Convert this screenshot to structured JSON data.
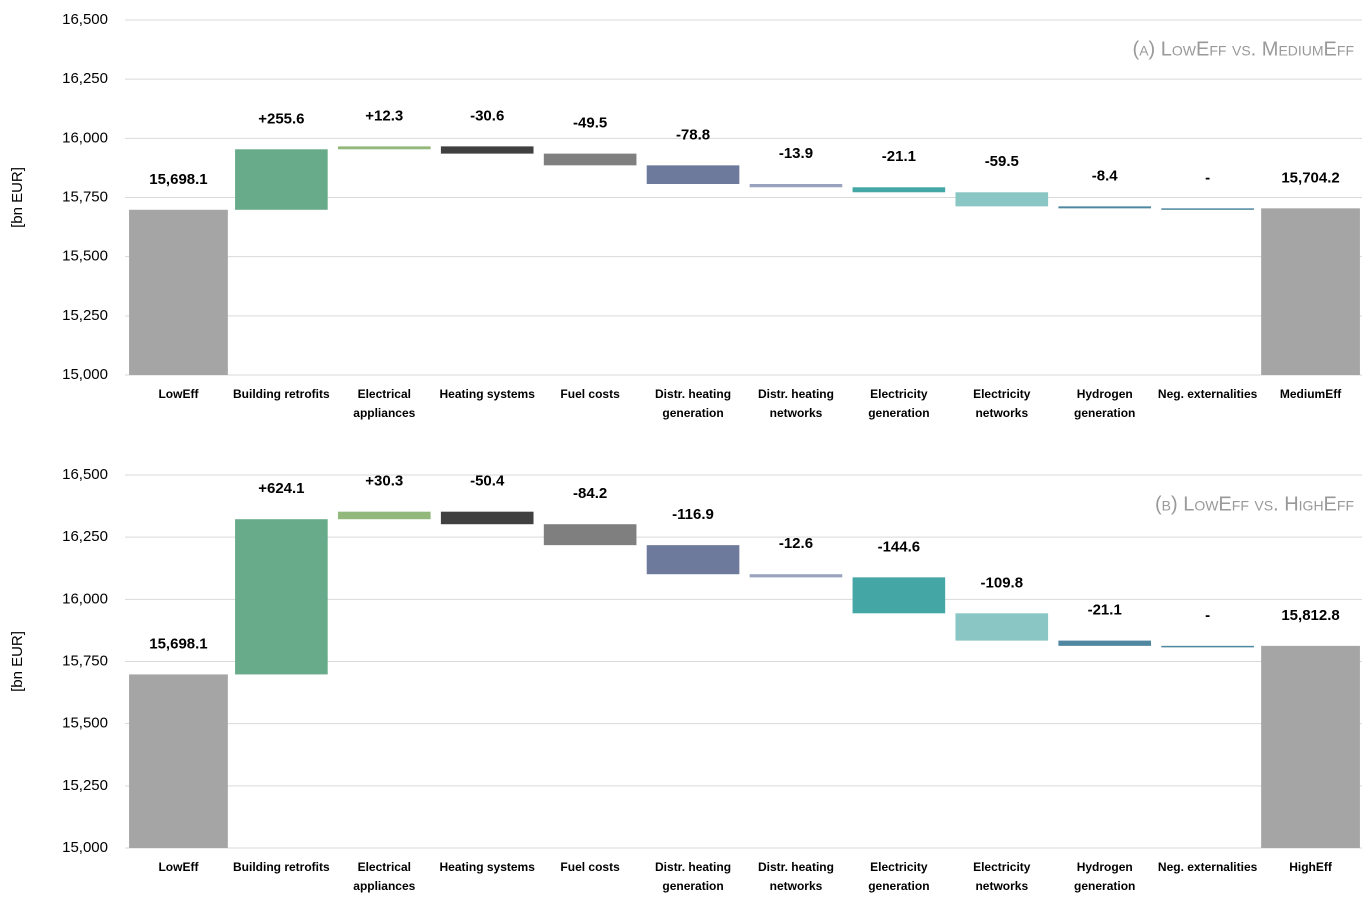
{
  "chart_data": [
    {
      "type": "waterfall",
      "subtitle": "(a) LowEff vs. MediumEff",
      "y_label": "[bn EUR]",
      "categories": [
        "LowEff",
        "Building retrofits",
        "Electrical appliances",
        "Heating systems",
        "Fuel costs",
        "Distr. heating generation",
        "Distr. heating networks",
        "Electricity generation",
        "Electricity networks",
        "Hydrogen generation",
        "Neg. externalities",
        "MediumEff"
      ],
      "measure": [
        "total",
        "relative",
        "relative",
        "relative",
        "relative",
        "relative",
        "relative",
        "relative",
        "relative",
        "relative",
        "relative",
        "total"
      ],
      "values": [
        15698.1,
        255.6,
        12.3,
        -30.6,
        -49.5,
        -78.8,
        -13.9,
        -21.1,
        -59.5,
        -8.4,
        0,
        15704.2
      ],
      "value_labels": [
        "15,698.1",
        "+255.6",
        "+12.3",
        "-30.6",
        "-49.5",
        "-78.8",
        "-13.9",
        "-21.1",
        "-59.5",
        "-8.4",
        "-",
        "15,704.2"
      ],
      "colors": [
        "#a5a5a5",
        "#68ab8a",
        "#93b87c",
        "#404040",
        "#7f7f7f",
        "#6d7a9b",
        "#9aa3bd",
        "#44a7a6",
        "#8ac6c3",
        "#4f87a0",
        "#4f87a0",
        "#a5a5a5"
      ],
      "ylim": [
        15000,
        16500
      ],
      "yticks": [
        {
          "value": 15000,
          "label": "15,000"
        },
        {
          "value": 15250,
          "label": "15,250"
        },
        {
          "value": 15500,
          "label": "15,500"
        },
        {
          "value": 15750,
          "label": "15,750"
        },
        {
          "value": 16000,
          "label": "16,000"
        },
        {
          "value": 16250,
          "label": "16,250"
        },
        {
          "value": 16500,
          "label": "16,500"
        }
      ],
      "grid": true
    },
    {
      "type": "waterfall",
      "subtitle": "(b) LowEff vs. HighEff",
      "y_label": "[bn EUR]",
      "categories": [
        "LowEff",
        "Building retrofits",
        "Electrical appliances",
        "Heating systems",
        "Fuel costs",
        "Distr. heating generation",
        "Distr. heating networks",
        "Electricity generation",
        "Electricity networks",
        "Hydrogen generation",
        "Neg. externalities",
        "HighEff"
      ],
      "measure": [
        "total",
        "relative",
        "relative",
        "relative",
        "relative",
        "relative",
        "relative",
        "relative",
        "relative",
        "relative",
        "relative",
        "total"
      ],
      "values": [
        15698.1,
        624.1,
        30.3,
        -50.4,
        -84.2,
        -116.9,
        -12.6,
        -144.6,
        -109.8,
        -21.1,
        0,
        15812.8
      ],
      "value_labels": [
        "15,698.1",
        "+624.1",
        "+30.3",
        "-50.4",
        "-84.2",
        "-116.9",
        "-12.6",
        "-144.6",
        "-109.8",
        "-21.1",
        "-",
        "15,812.8"
      ],
      "colors": [
        "#a5a5a5",
        "#68ab8a",
        "#93b87c",
        "#404040",
        "#7f7f7f",
        "#6d7a9b",
        "#9aa3bd",
        "#44a7a6",
        "#8ac6c3",
        "#4f87a0",
        "#4f87a0",
        "#a5a5a5"
      ],
      "ylim": [
        15000,
        16500
      ],
      "yticks": [
        {
          "value": 15000,
          "label": "15,000"
        },
        {
          "value": 15250,
          "label": "15,250"
        },
        {
          "value": 15500,
          "label": "15,500"
        },
        {
          "value": 15750,
          "label": "15,750"
        },
        {
          "value": 16000,
          "label": "16,000"
        },
        {
          "value": 16250,
          "label": "16,250"
        },
        {
          "value": 16500,
          "label": "16,500"
        }
      ],
      "grid": true
    }
  ]
}
